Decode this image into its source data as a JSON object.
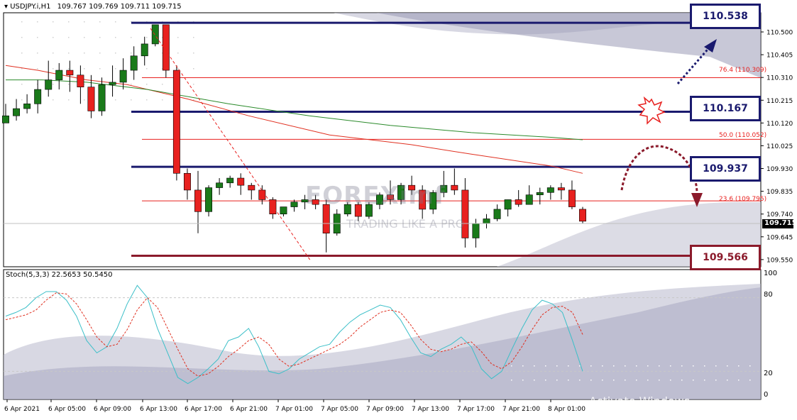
{
  "header": {
    "symbol": "USDJPY.i,H1",
    "ohlc": "109.767 109.769 109.711 109.715"
  },
  "indicator": {
    "label": "Stoch(5,3,3) 22.5653 50.5450",
    "levels": [
      "100",
      "80",
      "20",
      "0"
    ]
  },
  "price_levels": {
    "l1": "110.538",
    "l2": "110.167",
    "l3": "109.937",
    "l4": "109.566",
    "current": "109.715"
  },
  "fib_labels": {
    "f764": "76.4 (110.309)",
    "f500": "50.0 (110.052)",
    "f236": "23.6 (109.795)"
  },
  "watermark": {
    "brand": "FOREXimf",
    "slogan": "TRADING LIKE A PRO",
    "os_line1": "Activate Windows",
    "os_line2": "Go to Settings to activate Windows."
  },
  "colors": {
    "bull": "#1a7a1a",
    "bear": "#e8211f",
    "ma_fast": "#e03020",
    "ma_slow": "#2a8a2a",
    "level_blue": "#1a1a6e",
    "level_red": "#8b1a2b",
    "stoch_main": "#3bbfc8",
    "stoch_signal": "#e03020"
  },
  "chart_data": {
    "type": "candlestick",
    "title": "USDJPY.i,H1",
    "ylim": [
      109.52,
      110.58
    ],
    "y_ticks": [
      "110.500",
      "110.405",
      "110.310",
      "110.215",
      "110.120",
      "110.025",
      "109.930",
      "109.835",
      "109.740",
      "109.645",
      "109.550"
    ],
    "x_labels": [
      "6 Apr 2021",
      "6 Apr 05:00",
      "6 Apr 09:00",
      "6 Apr 13:00",
      "6 Apr 17:00",
      "6 Apr 21:00",
      "7 Apr 01:00",
      "7 Apr 05:00",
      "7 Apr 09:00",
      "7 Apr 13:00",
      "7 Apr 17:00",
      "7 Apr 21:00",
      "8 Apr 01:00"
    ],
    "candles": [
      [
        110.12,
        110.2,
        110.15,
        110.12
      ],
      [
        110.15,
        110.22,
        110.18,
        110.13
      ],
      [
        110.18,
        110.24,
        110.2,
        110.16
      ],
      [
        110.2,
        110.3,
        110.26,
        110.16
      ],
      [
        110.26,
        110.38,
        110.3,
        110.23
      ],
      [
        110.3,
        110.37,
        110.34,
        110.26
      ],
      [
        110.34,
        110.38,
        110.32,
        110.25
      ],
      [
        110.32,
        110.36,
        110.27,
        110.2
      ],
      [
        110.27,
        110.32,
        110.17,
        110.14
      ],
      [
        110.17,
        110.31,
        110.28,
        110.15
      ],
      [
        110.28,
        110.36,
        110.29,
        110.23
      ],
      [
        110.29,
        110.39,
        110.34,
        110.26
      ],
      [
        110.34,
        110.44,
        110.4,
        110.3
      ],
      [
        110.4,
        110.48,
        110.45,
        110.36
      ],
      [
        110.45,
        110.5,
        110.53,
        110.44
      ],
      [
        110.53,
        110.53,
        110.34,
        110.31
      ],
      [
        110.34,
        110.36,
        109.91,
        109.88
      ],
      [
        109.91,
        109.93,
        109.84,
        109.8
      ],
      [
        109.84,
        109.92,
        109.75,
        109.66
      ],
      [
        109.75,
        109.86,
        109.85,
        109.73
      ],
      [
        109.85,
        109.89,
        109.87,
        109.82
      ],
      [
        109.87,
        109.9,
        109.89,
        109.85
      ],
      [
        109.89,
        109.91,
        109.86,
        109.82
      ],
      [
        109.86,
        109.87,
        109.84,
        109.8
      ],
      [
        109.84,
        109.86,
        109.8,
        109.78
      ],
      [
        109.8,
        109.81,
        109.74,
        109.72
      ],
      [
        109.74,
        109.77,
        109.77,
        109.73
      ],
      [
        109.77,
        109.8,
        109.79,
        109.75
      ],
      [
        109.79,
        109.82,
        109.8,
        109.76
      ],
      [
        109.8,
        109.82,
        109.78,
        109.76
      ],
      [
        109.78,
        109.8,
        109.66,
        109.58
      ],
      [
        109.66,
        109.76,
        109.74,
        109.65
      ],
      [
        109.74,
        109.79,
        109.78,
        109.73
      ],
      [
        109.78,
        109.79,
        109.73,
        109.71
      ],
      [
        109.73,
        109.79,
        109.78,
        109.72
      ],
      [
        109.78,
        109.83,
        109.82,
        109.76
      ],
      [
        109.82,
        109.88,
        109.8,
        109.78
      ],
      [
        109.8,
        109.87,
        109.86,
        109.78
      ],
      [
        109.86,
        109.9,
        109.84,
        109.82
      ],
      [
        109.84,
        109.86,
        109.76,
        109.72
      ],
      [
        109.76,
        109.84,
        109.83,
        109.74
      ],
      [
        109.83,
        109.92,
        109.86,
        109.81
      ],
      [
        109.86,
        109.93,
        109.84,
        109.82
      ],
      [
        109.84,
        109.89,
        109.64,
        109.6
      ],
      [
        109.64,
        109.72,
        109.7,
        109.6
      ],
      [
        109.7,
        109.74,
        109.72,
        109.68
      ],
      [
        109.72,
        109.78,
        109.76,
        109.71
      ],
      [
        109.76,
        109.8,
        109.8,
        109.73
      ],
      [
        109.8,
        109.84,
        109.78,
        109.77
      ],
      [
        109.78,
        109.86,
        109.82,
        109.78
      ],
      [
        109.82,
        109.85,
        109.83,
        109.78
      ],
      [
        109.83,
        109.86,
        109.85,
        109.8
      ],
      [
        109.85,
        109.87,
        109.84,
        109.8
      ],
      [
        109.84,
        109.88,
        109.77,
        109.76
      ],
      [
        109.76,
        109.77,
        109.71,
        109.7
      ]
    ],
    "ma_fast": [
      [
        110.36,
        0
      ],
      [
        110.34,
        16
      ],
      [
        110.3,
        40
      ],
      [
        110.28,
        60
      ],
      [
        110.22,
        90
      ],
      [
        110.15,
        120
      ],
      [
        110.07,
        160
      ],
      [
        110.03,
        200
      ],
      [
        109.99,
        230
      ],
      [
        109.94,
        270
      ],
      [
        109.91,
        285
      ]
    ],
    "ma_slow": [
      [
        110.3,
        0
      ],
      [
        110.3,
        18
      ],
      [
        110.29,
        40
      ],
      [
        110.26,
        70
      ],
      [
        110.2,
        110
      ],
      [
        110.15,
        150
      ],
      [
        110.11,
        190
      ],
      [
        110.08,
        230
      ],
      [
        110.06,
        270
      ],
      [
        110.05,
        285
      ]
    ],
    "stochastic": {
      "main": [
        65,
        68,
        72,
        80,
        85,
        85,
        78,
        65,
        45,
        35,
        40,
        55,
        75,
        90,
        80,
        55,
        35,
        15,
        10,
        15,
        22,
        30,
        45,
        48,
        55,
        40,
        20,
        18,
        22,
        30,
        35,
        40,
        42,
        52,
        60,
        66,
        70,
        74,
        72,
        62,
        48,
        35,
        32,
        38,
        42,
        48,
        40,
        22,
        14,
        20,
        38,
        55,
        70,
        78,
        75,
        68,
        45,
        20
      ],
      "signal": [
        62,
        64,
        66,
        70,
        78,
        84,
        83,
        75,
        62,
        48,
        40,
        42,
        54,
        70,
        80,
        72,
        55,
        38,
        22,
        16,
        18,
        24,
        32,
        38,
        45,
        48,
        42,
        30,
        24,
        26,
        30,
        34,
        38,
        42,
        48,
        56,
        62,
        68,
        70,
        68,
        58,
        46,
        38,
        36,
        38,
        42,
        44,
        36,
        26,
        22,
        28,
        40,
        54,
        66,
        72,
        73,
        68,
        50
      ],
      "levels": [
        80,
        20
      ],
      "ylim": [
        0,
        100
      ]
    }
  }
}
